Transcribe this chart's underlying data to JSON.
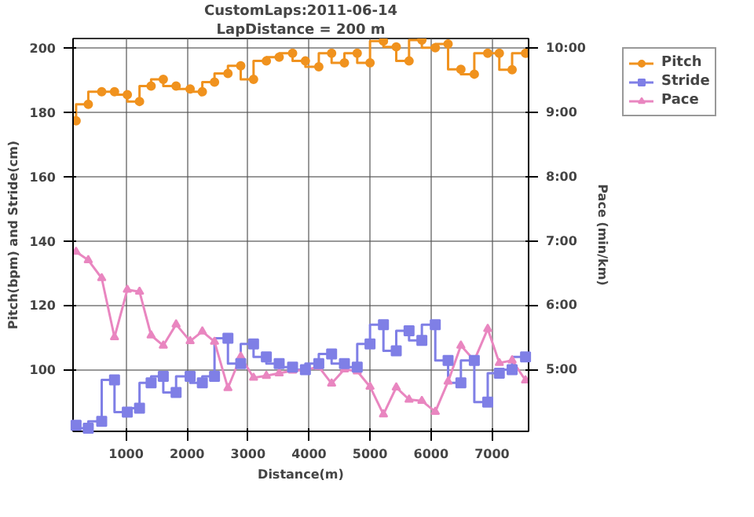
{
  "chart_data": {
    "type": "step",
    "title": "CustomLaps:2011-06-14",
    "subtitle": "LapDistance = 200 m",
    "xlabel": "Distance(m)",
    "ylabel": "Pitch(bpm) and Stride(cm)",
    "y2label": "Pace (min/km)",
    "x": [
      180,
      380,
      600,
      810,
      1020,
      1220,
      1410,
      1610,
      1820,
      2050,
      2250,
      2450,
      2670,
      2880,
      3090,
      3300,
      3510,
      3730,
      3940,
      4160,
      4370,
      4580,
      4790,
      5000,
      5220,
      5430,
      5640,
      5850,
      6070,
      6280,
      6490,
      6710,
      6930,
      7120,
      7330,
      7550
    ],
    "series": [
      {
        "name": "Pitch",
        "type": "step",
        "marker": "circle",
        "color": "#f0921e",
        "values": [
          177.4,
          182.5,
          186.4,
          186.4,
          185.5,
          183.4,
          188.2,
          190.3,
          188.2,
          187.3,
          186.4,
          189.4,
          192.1,
          194.5,
          190.3,
          196.0,
          197.2,
          198.4,
          196.0,
          194.2,
          198.4,
          195.4,
          198.4,
          195.4,
          202.2,
          200.4,
          196.0,
          202.5,
          200.1,
          201.3,
          193.4,
          191.9,
          198.4,
          198.4,
          193.3,
          198.4
        ]
      },
      {
        "name": "Stride",
        "type": "step",
        "marker": "square",
        "color": "#7f7fe6",
        "values": [
          82.6,
          81.7,
          83.8,
          96.7,
          86.7,
          87.9,
          95.8,
          97.8,
          92.8,
          97.8,
          95.8,
          97.8,
          109.7,
          101.8,
          107.9,
          103.9,
          101.8,
          100.7,
          99.9,
          101.8,
          104.8,
          101.8,
          100.7,
          107.9,
          113.9,
          105.8,
          112.0,
          109.0,
          113.9,
          102.8,
          95.8,
          102.8,
          89.8,
          98.8,
          99.9,
          103.9
        ]
      },
      {
        "name": "Pace",
        "type": "line",
        "marker": "triangle",
        "axis": "y2",
        "color": "#e986c0",
        "values": [
          6.83,
          6.7,
          6.42,
          5.5,
          6.24,
          6.21,
          5.53,
          5.37,
          5.7,
          5.44,
          5.59,
          5.43,
          4.71,
          5.2,
          4.87,
          4.9,
          4.94,
          4.98,
          4.99,
          5.04,
          4.78,
          5.0,
          4.97,
          4.73,
          4.3,
          4.72,
          4.53,
          4.51,
          4.34,
          4.81,
          5.37,
          5.14,
          5.63,
          5.1,
          5.14,
          4.83
        ]
      }
    ],
    "xlim": [
      130,
      7600
    ],
    "xticks": [
      1000,
      2000,
      3000,
      4000,
      5000,
      6000,
      7000
    ],
    "ylim": [
      80.7,
      203
    ],
    "yticks": [
      100,
      120,
      140,
      160,
      180,
      200
    ],
    "y2lim": [
      4.035,
      10.15
    ],
    "y2ticks": [
      {
        "value": 5,
        "label": "5:00"
      },
      {
        "value": 6,
        "label": "6:00"
      },
      {
        "value": 7,
        "label": "7:00"
      },
      {
        "value": 8,
        "label": "8:00"
      },
      {
        "value": 9,
        "label": "9:00"
      },
      {
        "value": 10,
        "label": "10:00"
      }
    ],
    "grid": true,
    "legend": "top right"
  }
}
